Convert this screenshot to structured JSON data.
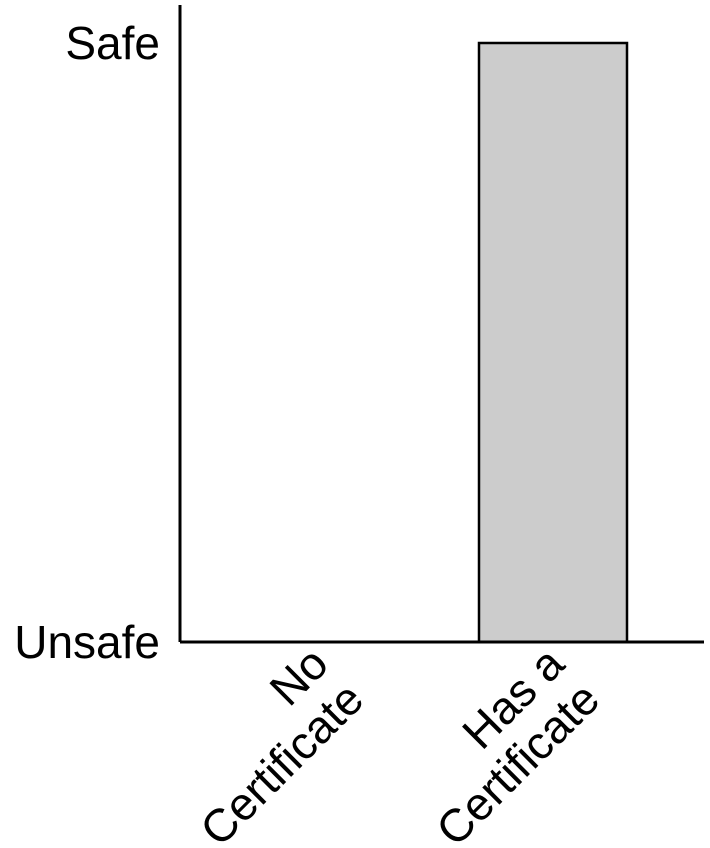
{
  "chart_data": {
    "type": "bar",
    "categories": [
      [
        "No",
        "Certificate"
      ],
      [
        "Has a",
        "Certificate"
      ]
    ],
    "values": [
      0,
      1
    ],
    "ylim": [
      0,
      1
    ],
    "yticks": [
      {
        "value": 1,
        "label": "Safe"
      },
      {
        "value": 0,
        "label": "Unsafe"
      }
    ],
    "bar_color": "#cccccc",
    "grid": false,
    "title": "",
    "xlabel": "",
    "ylabel": ""
  }
}
